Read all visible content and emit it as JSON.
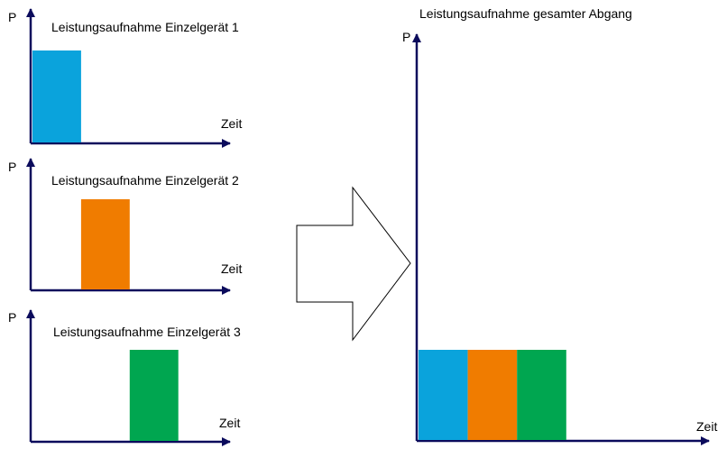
{
  "colors": {
    "device_1": "#0aa3dc",
    "device_2": "#f07c00",
    "device_3": "#00a650",
    "axis": "#0b0b5c",
    "arrow_outline": "#000000"
  },
  "chart_data": [
    {
      "type": "bar",
      "title": "Leistungsaufnahme Einzelgerät 1",
      "xlabel": "Zeit",
      "ylabel": "P",
      "bars": [
        {
          "start": 0,
          "end": 1,
          "value": 1,
          "color_key": "device_1"
        }
      ],
      "xlim": [
        0,
        4.1
      ],
      "ylim": [
        0,
        1.77
      ]
    },
    {
      "type": "bar",
      "title": "Leistungsaufnahme Einzelgerät 2",
      "xlabel": "Zeit",
      "ylabel": "P",
      "bars": [
        {
          "start": 1,
          "end": 2,
          "value": 1,
          "color_key": "device_2"
        }
      ],
      "xlim": [
        0,
        4.1
      ],
      "ylim": [
        0,
        1.77
      ]
    },
    {
      "type": "bar",
      "title": "Leistungsaufnahme Einzelgerät 3",
      "xlabel": "Zeit",
      "ylabel": "P",
      "bars": [
        {
          "start": 2,
          "end": 3,
          "value": 1,
          "color_key": "device_3"
        }
      ],
      "xlim": [
        0,
        4.1
      ],
      "ylim": [
        0,
        1.77
      ]
    },
    {
      "type": "bar",
      "title": "Leistungsaufnahme gesamter Abgang",
      "xlabel": "Zeit",
      "ylabel": "P",
      "bars": [
        {
          "start": 0,
          "end": 1,
          "value": 1,
          "color_key": "device_1"
        },
        {
          "start": 1,
          "end": 2,
          "value": 1,
          "color_key": "device_2"
        },
        {
          "start": 2,
          "end": 3,
          "value": 1,
          "color_key": "device_3"
        }
      ],
      "xlim": [
        0,
        5.9
      ],
      "ylim": [
        0,
        4.2
      ]
    }
  ]
}
